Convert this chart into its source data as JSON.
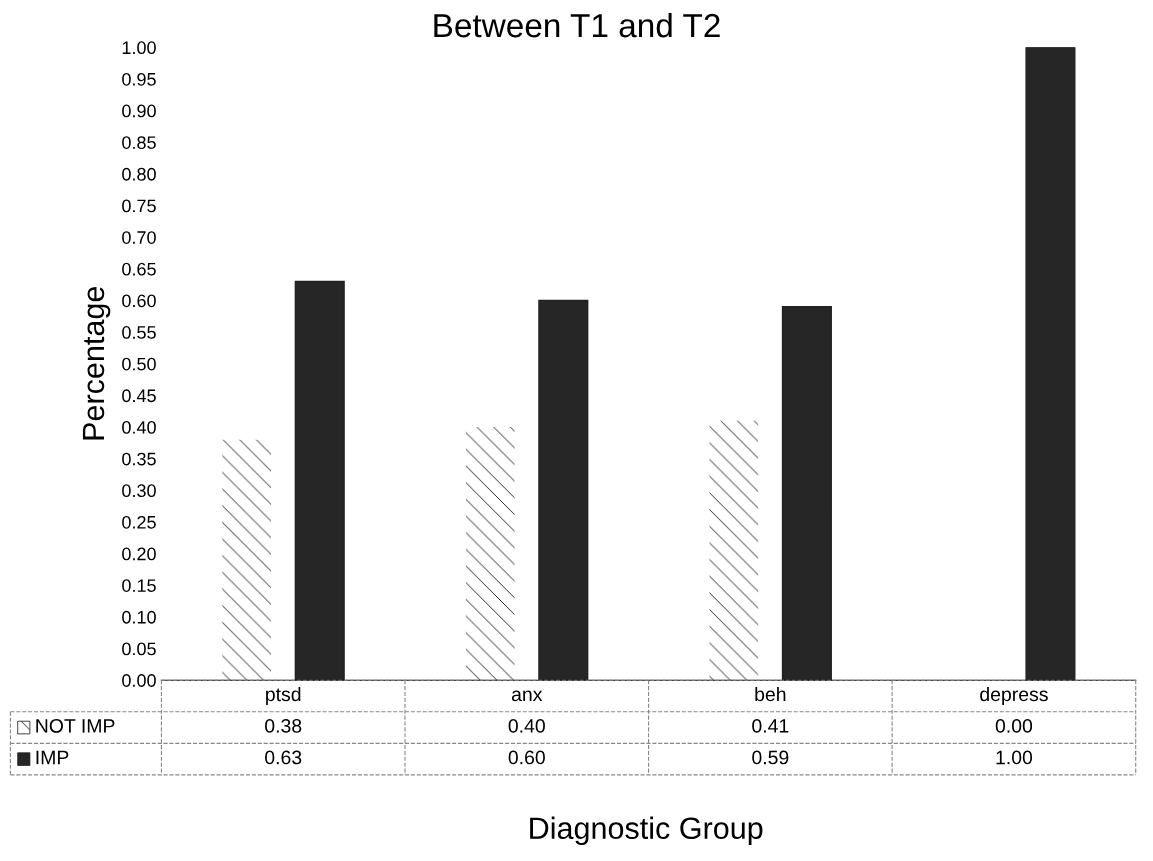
{
  "chart_data": {
    "type": "bar",
    "title": "Between T1 and T2",
    "xlabel": "Diagnostic Group",
    "ylabel": "Percentage",
    "categories": [
      "ptsd",
      "anx",
      "beh",
      "depress"
    ],
    "series": [
      {
        "name": "NOT IMP",
        "color": "#ffffff",
        "values": [
          0.38,
          0.4,
          0.41,
          0.0
        ],
        "value_labels": [
          "0.38",
          "0.40",
          "0.41",
          "0.00"
        ]
      },
      {
        "name": "IMP",
        "color": "#262626",
        "values": [
          0.63,
          0.6,
          0.59,
          1.0
        ],
        "value_labels": [
          "0.63",
          "0.60",
          "0.59",
          "1.00"
        ]
      }
    ],
    "ylim": [
      0,
      1
    ],
    "yticks": [
      {
        "value": 0,
        "label": "0.00"
      },
      {
        "value": 0.05,
        "label": "0.05"
      },
      {
        "value": 0.1,
        "label": "0.10"
      },
      {
        "value": 0.15,
        "label": "0.15"
      },
      {
        "value": 0.2,
        "label": "0.20"
      },
      {
        "value": 0.25,
        "label": "0.25"
      },
      {
        "value": 0.3,
        "label": "0.30"
      },
      {
        "value": 0.35,
        "label": "0.35"
      },
      {
        "value": 0.4,
        "label": "0.40"
      },
      {
        "value": 0.45,
        "label": "0.45"
      },
      {
        "value": 0.5,
        "label": "0.50"
      },
      {
        "value": 0.55,
        "label": "0.55"
      },
      {
        "value": 0.6,
        "label": "0.60"
      },
      {
        "value": 0.65,
        "label": "0.65"
      },
      {
        "value": 0.7,
        "label": "0.70"
      },
      {
        "value": 0.75,
        "label": "0.75"
      },
      {
        "value": 0.8,
        "label": "0.80"
      },
      {
        "value": 0.85,
        "label": "0.85"
      },
      {
        "value": 0.9,
        "label": "0.90"
      },
      {
        "value": 0.95,
        "label": "0.95"
      },
      {
        "value": 1,
        "label": "1.00"
      }
    ],
    "tick_labels": "y",
    "legend": "bottom",
    "grid": false
  }
}
